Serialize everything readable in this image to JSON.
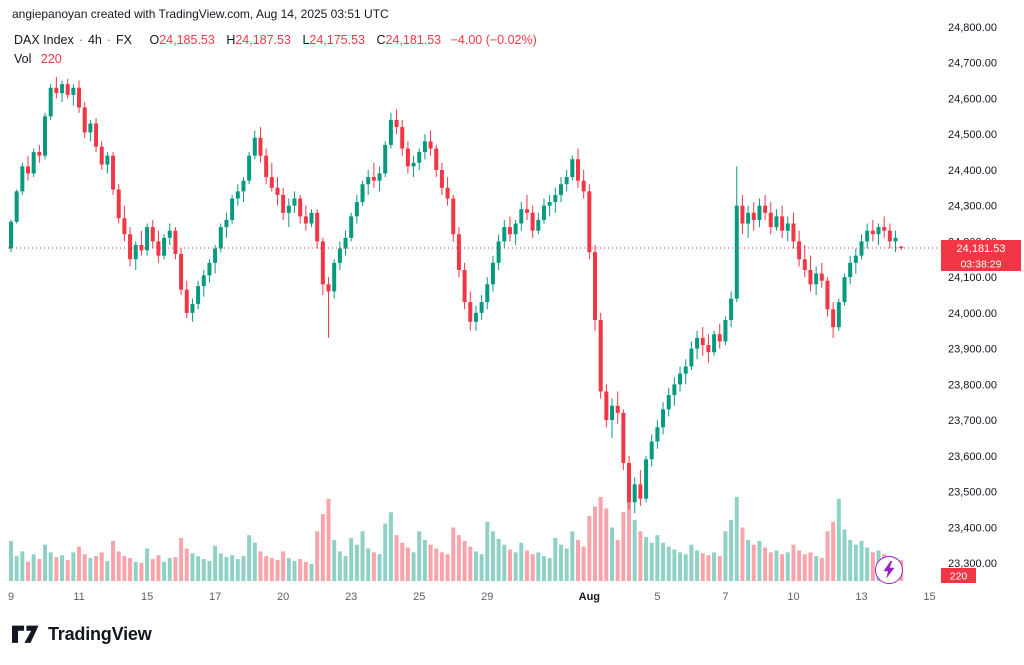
{
  "attribution": "angiepanoyan created with TradingView.com, Aug 14, 2025 03:51 UTC",
  "legend": {
    "symbol": "DAX Index",
    "interval": "4h",
    "exchange": "FX",
    "sep": "·",
    "o_label": "O",
    "o": "24,185.53",
    "h_label": "H",
    "h": "24,187.53",
    "l_label": "L",
    "l": "24,175.53",
    "c_label": "C",
    "c": "24,181.53",
    "change": "−4.00 (−0.02%)",
    "vol_label": "Vol",
    "vol_value": "220"
  },
  "price_axis": {
    "ticks": [
      {
        "v": 24800,
        "label": "24,800.00"
      },
      {
        "v": 24700,
        "label": "24,700.00"
      },
      {
        "v": 24600,
        "label": "24,600.00"
      },
      {
        "v": 24500,
        "label": "24,500.00"
      },
      {
        "v": 24400,
        "label": "24,400.00"
      },
      {
        "v": 24300,
        "label": "24,300.00"
      },
      {
        "v": 24200,
        "label": "24,200.00"
      },
      {
        "v": 24100,
        "label": "24,100.00"
      },
      {
        "v": 24000,
        "label": "24,000.00"
      },
      {
        "v": 23900,
        "label": "23,900.00"
      },
      {
        "v": 23800,
        "label": "23,800.00"
      },
      {
        "v": 23700,
        "label": "23,700.00"
      },
      {
        "v": 23600,
        "label": "23,600.00"
      },
      {
        "v": 23500,
        "label": "23,500.00"
      },
      {
        "v": 23400,
        "label": "23,400.00"
      },
      {
        "v": 23300,
        "label": "23,300.00"
      }
    ],
    "badge_price": "24,181.53",
    "badge_countdown": "03:38:29",
    "badge_volume": "220"
  },
  "footer": {
    "brand": "TradingView"
  },
  "colors": {
    "up": "#089981",
    "down": "#f23645",
    "vol_up": "rgba(8,153,129,0.45)",
    "vol_down": "rgba(242,54,69,0.45)",
    "text": "#131722",
    "muted": "#5d606b",
    "badge": "#f23645",
    "purple": "#9a1fc8"
  },
  "chart_data": {
    "type": "candlestick",
    "title": "DAX Index · 4h · FX",
    "ylabel": "Price",
    "y_range": [
      23300,
      24800
    ],
    "current_price": 24181.53,
    "current_change": "-4.00 (-0.02%)",
    "volume_scale_max": 900,
    "x_ticks": [
      {
        "i": 0,
        "label": "9"
      },
      {
        "i": 12,
        "label": "11"
      },
      {
        "i": 24,
        "label": "15"
      },
      {
        "i": 36,
        "label": "17"
      },
      {
        "i": 48,
        "label": "20"
      },
      {
        "i": 60,
        "label": "23"
      },
      {
        "i": 72,
        "label": "25"
      },
      {
        "i": 84,
        "label": "29"
      },
      {
        "i": 102,
        "label": "Aug"
      },
      {
        "i": 114,
        "label": "5"
      },
      {
        "i": 126,
        "label": "7"
      },
      {
        "i": 138,
        "label": "10"
      },
      {
        "i": 150,
        "label": "13"
      },
      {
        "i": 162,
        "label": "15"
      }
    ],
    "candles": [
      [
        24180,
        24260,
        24170,
        24255
      ],
      [
        24255,
        24345,
        24250,
        24340
      ],
      [
        24340,
        24420,
        24330,
        24410
      ],
      [
        24410,
        24440,
        24370,
        24390
      ],
      [
        24390,
        24460,
        24380,
        24450
      ],
      [
        24450,
        24470,
        24420,
        24440
      ],
      [
        24440,
        24560,
        24430,
        24550
      ],
      [
        24550,
        24640,
        24540,
        24630
      ],
      [
        24630,
        24660,
        24600,
        24615
      ],
      [
        24615,
        24650,
        24590,
        24640
      ],
      [
        24640,
        24655,
        24600,
        24610
      ],
      [
        24610,
        24640,
        24580,
        24630
      ],
      [
        24630,
        24650,
        24560,
        24575
      ],
      [
        24575,
        24590,
        24490,
        24505
      ],
      [
        24505,
        24540,
        24480,
        24530
      ],
      [
        24530,
        24545,
        24450,
        24465
      ],
      [
        24465,
        24480,
        24400,
        24415
      ],
      [
        24415,
        24450,
        24390,
        24440
      ],
      [
        24440,
        24450,
        24330,
        24345
      ],
      [
        24345,
        24360,
        24250,
        24265
      ],
      [
        24265,
        24300,
        24200,
        24220
      ],
      [
        24220,
        24240,
        24130,
        24150
      ],
      [
        24150,
        24200,
        24120,
        24190
      ],
      [
        24190,
        24230,
        24160,
        24175
      ],
      [
        24175,
        24250,
        24160,
        24240
      ],
      [
        24240,
        24260,
        24180,
        24200
      ],
      [
        24200,
        24230,
        24140,
        24160
      ],
      [
        24160,
        24220,
        24150,
        24210
      ],
      [
        24210,
        24250,
        24190,
        24230
      ],
      [
        24230,
        24240,
        24150,
        24165
      ],
      [
        24165,
        24180,
        24050,
        24065
      ],
      [
        24065,
        24090,
        23985,
        24000
      ],
      [
        24000,
        24040,
        23975,
        24025
      ],
      [
        24025,
        24090,
        24010,
        24075
      ],
      [
        24075,
        24120,
        24045,
        24105
      ],
      [
        24105,
        24150,
        24085,
        24140
      ],
      [
        24140,
        24190,
        24110,
        24180
      ],
      [
        24180,
        24250,
        24170,
        24240
      ],
      [
        24240,
        24280,
        24210,
        24260
      ],
      [
        24260,
        24330,
        24250,
        24320
      ],
      [
        24320,
        24360,
        24300,
        24340
      ],
      [
        24340,
        24380,
        24310,
        24370
      ],
      [
        24370,
        24450,
        24360,
        24440
      ],
      [
        24440,
        24510,
        24430,
        24490
      ],
      [
        24490,
        24520,
        24420,
        24440
      ],
      [
        24440,
        24460,
        24360,
        24380
      ],
      [
        24380,
        24420,
        24340,
        24350
      ],
      [
        24350,
        24380,
        24300,
        24330
      ],
      [
        24330,
        24350,
        24260,
        24280
      ],
      [
        24280,
        24320,
        24240,
        24300
      ],
      [
        24300,
        24340,
        24280,
        24320
      ],
      [
        24320,
        24330,
        24250,
        24270
      ],
      [
        24270,
        24300,
        24230,
        24250
      ],
      [
        24250,
        24290,
        24240,
        24280
      ],
      [
        24280,
        24290,
        24180,
        24200
      ],
      [
        24200,
        24210,
        24050,
        24080
      ],
      [
        24080,
        24100,
        23930,
        24060
      ],
      [
        24060,
        24150,
        24040,
        24140
      ],
      [
        24140,
        24200,
        24120,
        24180
      ],
      [
        24180,
        24230,
        24160,
        24210
      ],
      [
        24210,
        24280,
        24200,
        24270
      ],
      [
        24270,
        24330,
        24250,
        24310
      ],
      [
        24310,
        24370,
        24300,
        24360
      ],
      [
        24360,
        24400,
        24330,
        24380
      ],
      [
        24380,
        24420,
        24350,
        24370
      ],
      [
        24370,
        24410,
        24340,
        24390
      ],
      [
        24390,
        24480,
        24380,
        24470
      ],
      [
        24470,
        24560,
        24460,
        24540
      ],
      [
        24540,
        24570,
        24500,
        24520
      ],
      [
        24520,
        24540,
        24440,
        24460
      ],
      [
        24460,
        24480,
        24390,
        24410
      ],
      [
        24410,
        24440,
        24380,
        24420
      ],
      [
        24420,
        24460,
        24400,
        24450
      ],
      [
        24450,
        24500,
        24430,
        24480
      ],
      [
        24480,
        24510,
        24440,
        24460
      ],
      [
        24460,
        24470,
        24380,
        24400
      ],
      [
        24400,
        24420,
        24330,
        24350
      ],
      [
        24350,
        24380,
        24300,
        24320
      ],
      [
        24320,
        24330,
        24200,
        24220
      ],
      [
        24220,
        24240,
        24100,
        24120
      ],
      [
        24120,
        24140,
        24010,
        24030
      ],
      [
        24030,
        24060,
        23950,
        23975
      ],
      [
        23975,
        24020,
        23950,
        24000
      ],
      [
        24000,
        24050,
        23980,
        24030
      ],
      [
        24030,
        24100,
        24010,
        24080
      ],
      [
        24080,
        24160,
        24060,
        24140
      ],
      [
        24140,
        24220,
        24120,
        24200
      ],
      [
        24200,
        24260,
        24180,
        24240
      ],
      [
        24240,
        24270,
        24200,
        24220
      ],
      [
        24220,
        24260,
        24190,
        24250
      ],
      [
        24250,
        24310,
        24230,
        24290
      ],
      [
        24290,
        24330,
        24260,
        24280
      ],
      [
        24280,
        24300,
        24210,
        24230
      ],
      [
        24230,
        24280,
        24220,
        24260
      ],
      [
        24260,
        24320,
        24250,
        24300
      ],
      [
        24300,
        24330,
        24270,
        24310
      ],
      [
        24310,
        24350,
        24280,
        24330
      ],
      [
        24330,
        24380,
        24310,
        24360
      ],
      [
        24360,
        24400,
        24340,
        24380
      ],
      [
        24380,
        24440,
        24370,
        24430
      ],
      [
        24430,
        24460,
        24350,
        24370
      ],
      [
        24370,
        24400,
        24320,
        24340
      ],
      [
        24340,
        24360,
        24150,
        24170
      ],
      [
        24170,
        24190,
        23950,
        23980
      ],
      [
        23980,
        24000,
        23760,
        23780
      ],
      [
        23780,
        23800,
        23680,
        23700
      ],
      [
        23700,
        23760,
        23650,
        23740
      ],
      [
        23740,
        23780,
        23690,
        23720
      ],
      [
        23720,
        23730,
        23560,
        23580
      ],
      [
        23580,
        23600,
        23450,
        23470
      ],
      [
        23470,
        23540,
        23440,
        23520
      ],
      [
        23520,
        23560,
        23460,
        23480
      ],
      [
        23480,
        23600,
        23470,
        23590
      ],
      [
        23590,
        23660,
        23570,
        23640
      ],
      [
        23640,
        23700,
        23620,
        23680
      ],
      [
        23680,
        23750,
        23660,
        23730
      ],
      [
        23730,
        23790,
        23710,
        23770
      ],
      [
        23770,
        23820,
        23740,
        23800
      ],
      [
        23800,
        23850,
        23780,
        23830
      ],
      [
        23830,
        23870,
        23800,
        23850
      ],
      [
        23850,
        23920,
        23840,
        23900
      ],
      [
        23900,
        23950,
        23870,
        23930
      ],
      [
        23930,
        23960,
        23880,
        23910
      ],
      [
        23910,
        23940,
        23860,
        23890
      ],
      [
        23890,
        23950,
        23880,
        23940
      ],
      [
        23940,
        23970,
        23900,
        23920
      ],
      [
        23920,
        23990,
        23910,
        23980
      ],
      [
        23980,
        24060,
        23960,
        24040
      ],
      [
        24040,
        24410,
        24030,
        24300
      ],
      [
        24300,
        24330,
        24220,
        24250
      ],
      [
        24250,
        24300,
        24210,
        24280
      ],
      [
        24280,
        24310,
        24230,
        24260
      ],
      [
        24260,
        24320,
        24240,
        24300
      ],
      [
        24300,
        24330,
        24260,
        24280
      ],
      [
        24280,
        24310,
        24220,
        24240
      ],
      [
        24240,
        24290,
        24230,
        24270
      ],
      [
        24270,
        24300,
        24210,
        24230
      ],
      [
        24230,
        24270,
        24200,
        24250
      ],
      [
        24250,
        24280,
        24180,
        24200
      ],
      [
        24200,
        24230,
        24130,
        24150
      ],
      [
        24150,
        24190,
        24100,
        24120
      ],
      [
        24120,
        24160,
        24060,
        24080
      ],
      [
        24080,
        24130,
        24050,
        24110
      ],
      [
        24110,
        24140,
        24070,
        24090
      ],
      [
        24090,
        24100,
        23990,
        24010
      ],
      [
        24010,
        24030,
        23930,
        23960
      ],
      [
        23960,
        24040,
        23950,
        24030
      ],
      [
        24030,
        24110,
        24020,
        24100
      ],
      [
        24100,
        24160,
        24080,
        24140
      ],
      [
        24140,
        24180,
        24110,
        24160
      ],
      [
        24160,
        24220,
        24150,
        24200
      ],
      [
        24200,
        24250,
        24180,
        24230
      ],
      [
        24230,
        24260,
        24200,
        24220
      ],
      [
        24220,
        24250,
        24190,
        24240
      ],
      [
        24240,
        24270,
        24210,
        24230
      ],
      [
        24230,
        24250,
        24180,
        24200
      ],
      [
        24200,
        24230,
        24170,
        24210
      ],
      [
        24185.53,
        24187.53,
        24175.53,
        24181.53
      ]
    ],
    "volumes": [
      420,
      260,
      310,
      200,
      280,
      230,
      380,
      300,
      250,
      270,
      220,
      300,
      360,
      280,
      240,
      260,
      300,
      210,
      420,
      310,
      260,
      240,
      200,
      190,
      340,
      230,
      270,
      200,
      240,
      250,
      450,
      340,
      290,
      260,
      230,
      210,
      370,
      290,
      250,
      270,
      230,
      260,
      480,
      400,
      310,
      260,
      240,
      220,
      310,
      240,
      210,
      230,
      200,
      180,
      520,
      700,
      860,
      430,
      310,
      260,
      450,
      380,
      520,
      340,
      300,
      280,
      600,
      720,
      480,
      400,
      350,
      300,
      520,
      430,
      380,
      340,
      300,
      280,
      560,
      480,
      420,
      360,
      310,
      280,
      620,
      520,
      440,
      380,
      330,
      300,
      400,
      320,
      280,
      300,
      260,
      240,
      450,
      380,
      340,
      520,
      430,
      360,
      680,
      780,
      880,
      760,
      560,
      430,
      720,
      840,
      640,
      520,
      460,
      400,
      480,
      400,
      360,
      330,
      300,
      280,
      380,
      320,
      290,
      270,
      300,
      260,
      520,
      640,
      880,
      560,
      430,
      380,
      420,
      350,
      300,
      320,
      280,
      300,
      380,
      320,
      280,
      300,
      260,
      240,
      520,
      620,
      860,
      540,
      430,
      380,
      420,
      350,
      300,
      320,
      280,
      260,
      240,
      220
    ]
  }
}
